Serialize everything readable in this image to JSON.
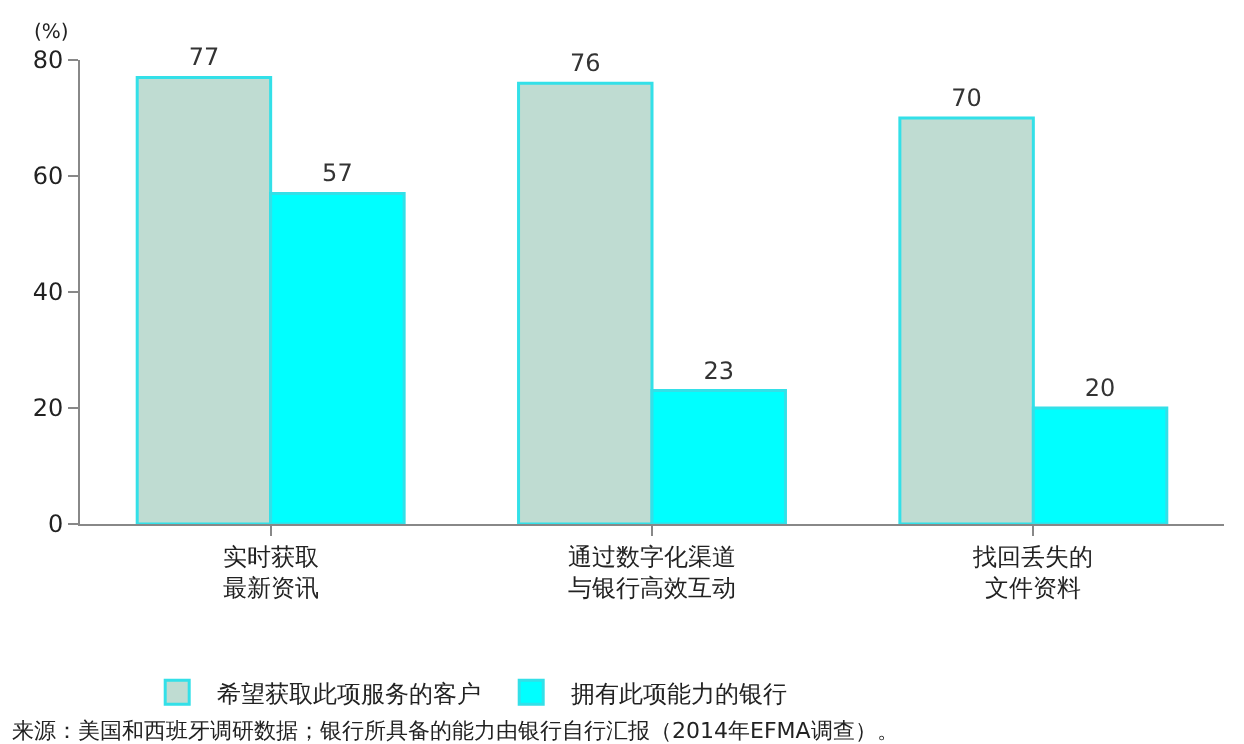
{
  "chart_data": {
    "type": "bar",
    "ylabel": "(%)",
    "categories": [
      "实时获取最新资讯",
      "通过数字化渠道与银行高效互动",
      "找回丢失的文件资料"
    ],
    "series": [
      {
        "name": "希望获取此项服务的客户",
        "color": "#bfdcd2",
        "values": [
          77,
          76,
          70
        ]
      },
      {
        "name": "拥有此项能力的银行",
        "color": "#00ffff",
        "values": [
          57,
          23,
          20
        ]
      }
    ],
    "ylim": [
      0,
      80
    ],
    "yticks": [
      0,
      20,
      40,
      60,
      80
    ],
    "data_labels": true,
    "legend": "bottom",
    "annotations": [
      "来源：美国和西班牙调研数据；银行所具备的能力由银行自行汇报（2014年EFMA调查）。"
    ]
  }
}
